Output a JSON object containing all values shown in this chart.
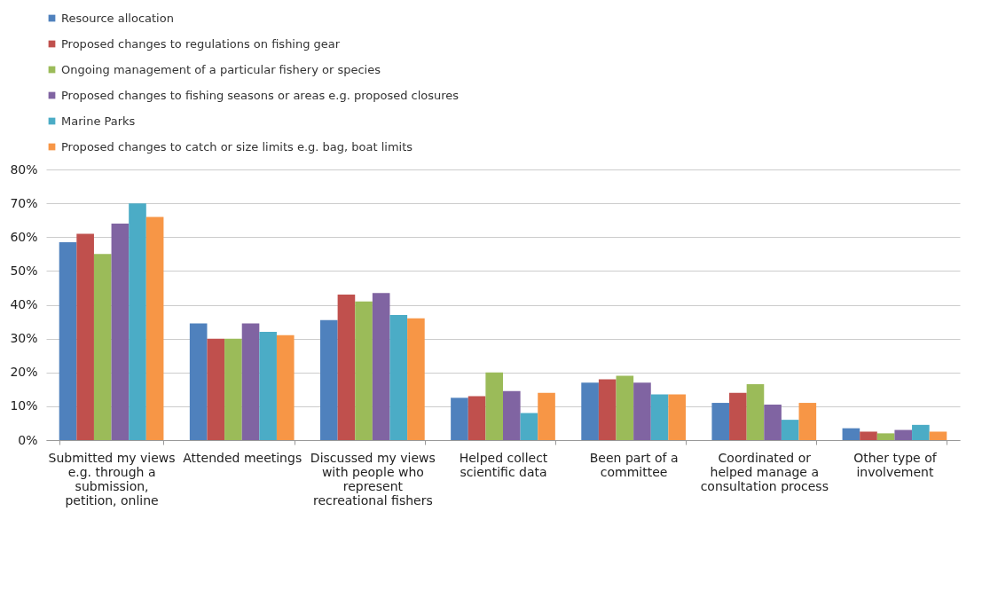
{
  "chart_data": {
    "type": "bar",
    "categories": [
      "Submitted my views e.g. through a submission, petition, online",
      "Attended meetings",
      "Discussed my views with people who represent recreational fishers",
      "Helped collect scientific data",
      "Been part of a committee",
      "Coordinated or helped manage a consultation process",
      "Other type of involvement"
    ],
    "series": [
      {
        "name": "Resource allocation",
        "color": "#4f81bd",
        "values": [
          58.5,
          34.5,
          35.5,
          12.5,
          17,
          11,
          3.5
        ]
      },
      {
        "name": "Proposed changes to regulations on fishing gear",
        "color": "#c0504d",
        "values": [
          61,
          30,
          43,
          13,
          18,
          14,
          2.5
        ]
      },
      {
        "name": "Ongoing management of a particular fishery or species",
        "color": "#9bbb59",
        "values": [
          55,
          30,
          41,
          20,
          19,
          16.5,
          2
        ]
      },
      {
        "name": "Proposed changes to fishing seasons or areas e.g. proposed closures",
        "color": "#8064a2",
        "values": [
          64,
          34.5,
          43.5,
          14.5,
          17,
          10.5,
          3
        ]
      },
      {
        "name": "Marine Parks",
        "color": "#4bacc6",
        "values": [
          70,
          32,
          37,
          8,
          13.5,
          6,
          4.5
        ]
      },
      {
        "name": "Proposed changes to catch or size limits e.g. bag, boat limits",
        "color": "#f79646",
        "values": [
          66,
          31,
          36,
          14,
          13.5,
          11,
          2.5
        ]
      }
    ],
    "ylim": [
      0,
      80
    ],
    "yticks": [
      {
        "value": 0,
        "label": "0%"
      },
      {
        "value": 10,
        "label": "10%"
      },
      {
        "value": 20,
        "label": "20%"
      },
      {
        "value": 30,
        "label": "30%"
      },
      {
        "value": 40,
        "label": "40%"
      },
      {
        "value": 50,
        "label": "50%"
      },
      {
        "value": 60,
        "label": "60%"
      },
      {
        "value": 70,
        "label": "70%"
      },
      {
        "value": 80,
        "label": "80%"
      }
    ],
    "grid": "y",
    "legend": "top"
  }
}
